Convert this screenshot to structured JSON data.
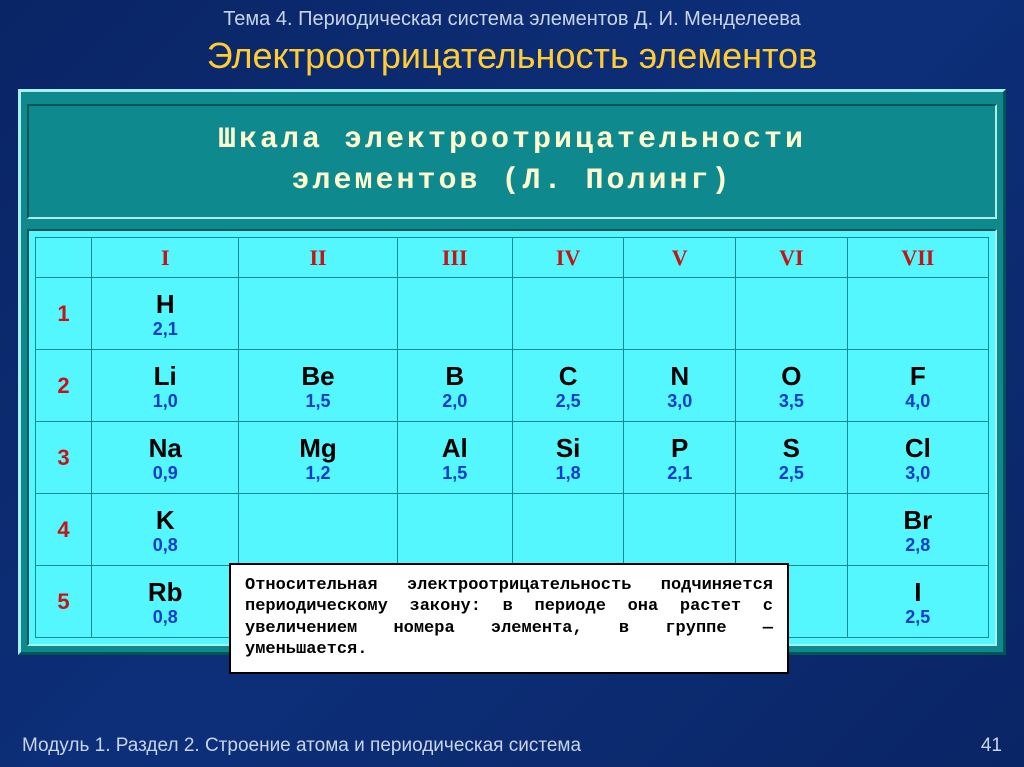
{
  "header": {
    "topic_line": "Тема 4. Периодическая система элементов Д. И. Менделеева",
    "title": "Электроотрицательность элементов"
  },
  "panel": {
    "title_line1": "Шкала электроотрицательности",
    "title_line2": "элементов (Л. Полинг)"
  },
  "table": {
    "type": "table",
    "columns": [
      "",
      "I",
      "II",
      "III",
      "IV",
      "V",
      "VI",
      "VII"
    ],
    "row_labels": [
      "1",
      "2",
      "3",
      "4",
      "5"
    ],
    "cells": [
      [
        {
          "sym": "H",
          "val": "2,1"
        },
        null,
        null,
        null,
        null,
        null,
        null
      ],
      [
        {
          "sym": "Li",
          "val": "1,0"
        },
        {
          "sym": "Be",
          "val": "1,5"
        },
        {
          "sym": "B",
          "val": "2,0"
        },
        {
          "sym": "C",
          "val": "2,5"
        },
        {
          "sym": "N",
          "val": "3,0"
        },
        {
          "sym": "O",
          "val": "3,5"
        },
        {
          "sym": "F",
          "val": "4,0"
        }
      ],
      [
        {
          "sym": "Na",
          "val": "0,9"
        },
        {
          "sym": "Mg",
          "val": "1,2"
        },
        {
          "sym": "Al",
          "val": "1,5"
        },
        {
          "sym": "Si",
          "val": "1,8"
        },
        {
          "sym": "P",
          "val": "2,1"
        },
        {
          "sym": "S",
          "val": "2,5"
        },
        {
          "sym": "Cl",
          "val": "3,0"
        }
      ],
      [
        {
          "sym": "K",
          "val": "0,8"
        },
        null,
        null,
        null,
        null,
        null,
        {
          "sym": "Br",
          "val": "2,8"
        }
      ],
      [
        {
          "sym": "Rb",
          "val": "0,8"
        },
        null,
        null,
        null,
        null,
        null,
        {
          "sym": "I",
          "val": "2,5"
        }
      ]
    ],
    "background_color": "#55f7ff",
    "grid_color": "#0a8a9a",
    "header_text_color": "#c21515",
    "symbol_color": "#000000",
    "value_color": "#0c3cc9",
    "symbol_fontsize": 26,
    "value_fontsize": 18,
    "header_fontsize": 22
  },
  "note": {
    "text": "Относительная электроотрицательность подчиняется периодическому закону: в периоде она растет с увеличением номера элемента, в группе — уменьшается.",
    "background": "#ffffff",
    "fontsize": 17
  },
  "footer": {
    "left": "Модуль 1. Раздел 2. Строение атома и периодическая система",
    "page": "41"
  },
  "colors": {
    "slide_bg_start": "#0a2565",
    "slide_bg_end": "#0d2f7a",
    "title_color": "#ffcc33",
    "subtitle_color": "#c8d4e8",
    "panel_bg": "#0e8a8f",
    "panel_title_color": "#fffbcf"
  }
}
